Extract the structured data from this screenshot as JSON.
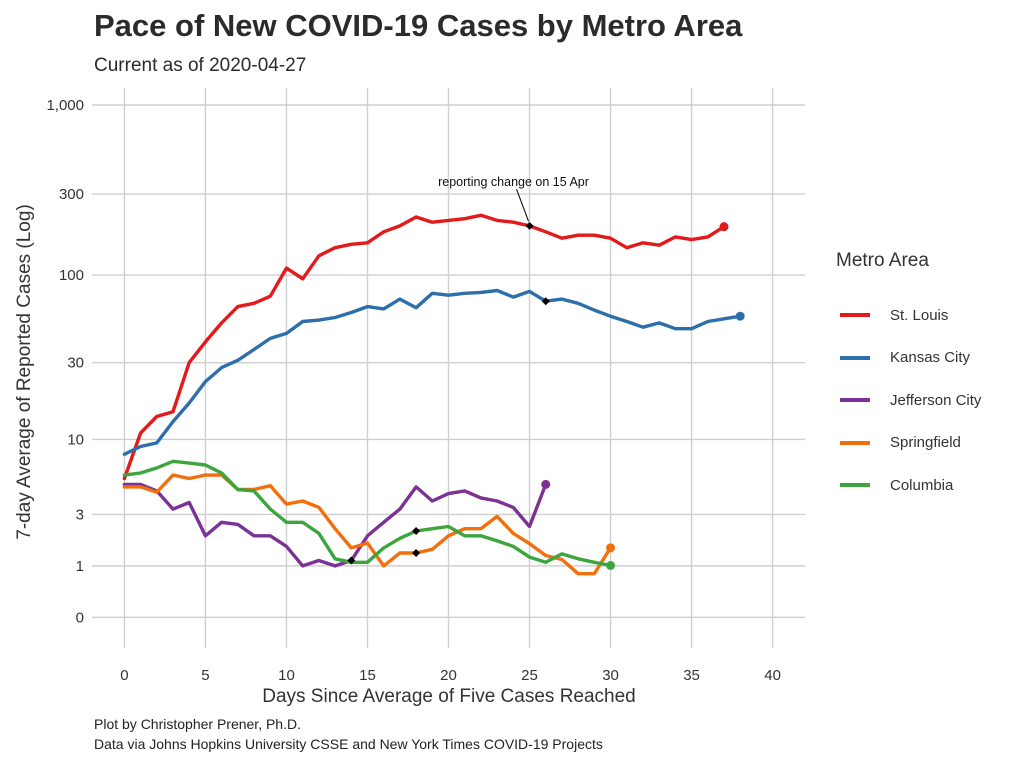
{
  "header": {
    "title": "Pace of New COVID-19 Cases by Metro Area",
    "subtitle": "Current as of 2020-04-27"
  },
  "caption": {
    "line1": "Plot by Christopher Prener, Ph.D.",
    "line2": "Data via Johns Hopkins University CSSE and New York Times COVID-19 Projects"
  },
  "chart_data": {
    "type": "line",
    "xlabel": "Days Since Average of Five Cases Reached",
    "ylabel": "7-day Average of Reported Cases (Log)",
    "y_scale": "log",
    "xlim": [
      -2,
      42
    ],
    "ylim": [
      0,
      1000
    ],
    "x_ticks": [
      0,
      5,
      10,
      15,
      20,
      25,
      30,
      35,
      40
    ],
    "y_ticks": [
      0,
      1,
      3,
      10,
      30,
      100,
      300,
      1000
    ],
    "y_tick_labels": [
      "0",
      "1",
      "3",
      "10",
      "30",
      "100",
      "300",
      "1,000"
    ],
    "grid": true,
    "legend_position": "right",
    "legend_title": "Metro Area",
    "annotation": {
      "text": "reporting change on 15 Apr",
      "x": 25,
      "y": 197
    },
    "series": [
      {
        "name": "St. Louis",
        "color": "#e31a1c",
        "x": [
          0,
          1,
          2,
          3,
          4,
          5,
          6,
          7,
          8,
          9,
          10,
          11,
          12,
          13,
          14,
          15,
          16,
          17,
          18,
          19,
          20,
          21,
          22,
          23,
          24,
          25,
          26,
          27,
          28,
          29,
          30,
          31,
          32,
          33,
          34,
          35,
          36,
          37
        ],
        "values": [
          5.5,
          11,
          14,
          15,
          30,
          40,
          52,
          65,
          68,
          75,
          110,
          95,
          130,
          145,
          152,
          155,
          180,
          195,
          220,
          205,
          210,
          215,
          225,
          210,
          205,
          195,
          180,
          165,
          172,
          172,
          165,
          145,
          155,
          150,
          168,
          162,
          168,
          193
        ],
        "markers": [
          {
            "x": 25,
            "y": 195
          }
        ]
      },
      {
        "name": "Kansas City",
        "color": "#2c6faa",
        "x": [
          0,
          1,
          2,
          3,
          4,
          5,
          6,
          7,
          8,
          9,
          10,
          11,
          12,
          13,
          14,
          15,
          16,
          17,
          18,
          19,
          20,
          21,
          22,
          23,
          24,
          25,
          26,
          27,
          28,
          29,
          30,
          31,
          32,
          33,
          34,
          35,
          36,
          37,
          38
        ],
        "values": [
          8,
          9,
          9.5,
          13,
          17,
          23,
          28,
          31,
          36,
          42,
          45,
          53,
          54,
          56,
          60,
          65,
          63,
          72,
          64,
          78,
          76,
          78,
          79,
          81,
          74,
          80,
          70,
          72,
          68,
          62,
          57,
          53,
          49,
          52,
          48,
          48,
          53,
          55,
          57
        ],
        "markers": [
          {
            "x": 26,
            "y": 70
          }
        ]
      },
      {
        "name": "Jefferson City",
        "color": "#7b3294",
        "x": [
          0,
          1,
          2,
          3,
          4,
          5,
          6,
          7,
          8,
          9,
          10,
          11,
          12,
          13,
          14,
          15,
          16,
          17,
          18,
          19,
          20,
          21,
          22,
          23,
          24,
          25,
          26
        ],
        "values": [
          5,
          5,
          4.5,
          3.3,
          3.7,
          2,
          2.6,
          2.5,
          2,
          2,
          1.6,
          1,
          1.15,
          1,
          1.15,
          2,
          2.6,
          3.3,
          4.8,
          3.8,
          4.3,
          4.5,
          4,
          3.8,
          3.4,
          2.4,
          5
        ],
        "markers": [
          {
            "x": 14,
            "y": 1.15
          }
        ]
      },
      {
        "name": "Springfield",
        "color": "#f36f0e",
        "x": [
          0,
          1,
          2,
          3,
          4,
          5,
          6,
          7,
          8,
          9,
          10,
          11,
          12,
          13,
          14,
          15,
          16,
          17,
          18,
          19,
          20,
          21,
          22,
          23,
          24,
          25,
          26,
          27,
          28,
          29,
          30
        ],
        "values": [
          4.8,
          4.8,
          4.4,
          5.8,
          5.5,
          5.8,
          5.8,
          4.6,
          4.6,
          4.9,
          3.6,
          3.8,
          3.4,
          2.3,
          1.55,
          1.72,
          1,
          1.38,
          1.38,
          1.5,
          2,
          2.3,
          2.3,
          2.9,
          2.1,
          1.7,
          1.3,
          1.18,
          0.8,
          0.8,
          1.55
        ],
        "markers": [
          {
            "x": 18,
            "y": 1.38
          }
        ]
      },
      {
        "name": "Columbia",
        "color": "#3da53d",
        "x": [
          0,
          1,
          2,
          3,
          4,
          5,
          6,
          7,
          8,
          9,
          10,
          11,
          12,
          13,
          14,
          15,
          16,
          17,
          18,
          19,
          20,
          21,
          22,
          23,
          24,
          25,
          26,
          27,
          28,
          29,
          30
        ],
        "values": [
          5.8,
          6,
          6.5,
          7.2,
          7,
          6.8,
          6,
          4.6,
          4.5,
          3.3,
          2.6,
          2.6,
          2.1,
          1.2,
          1.1,
          1.1,
          1.55,
          1.9,
          2.2,
          2.3,
          2.4,
          2,
          2,
          1.8,
          1.6,
          1.25,
          1.1,
          1.35,
          1.2,
          1.1,
          1.01
        ],
        "markers": [
          {
            "x": 18,
            "y": 2.2
          }
        ]
      }
    ]
  }
}
